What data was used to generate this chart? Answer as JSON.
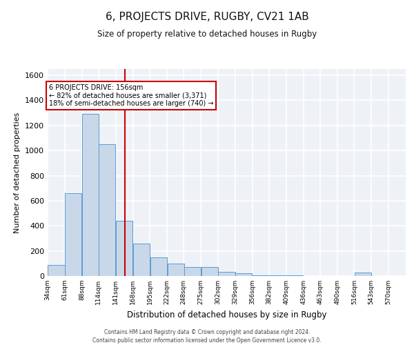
{
  "title": "6, PROJECTS DRIVE, RUGBY, CV21 1AB",
  "subtitle": "Size of property relative to detached houses in Rugby",
  "xlabel": "Distribution of detached houses by size in Rugby",
  "ylabel": "Number of detached properties",
  "annotation_line1": "6 PROJECTS DRIVE: 156sqm",
  "annotation_line2": "← 82% of detached houses are smaller (3,371)",
  "annotation_line3": "18% of semi-detached houses are larger (740) →",
  "property_size": 156,
  "bar_color": "#c8d8e8",
  "bar_edge_color": "#5b9bd5",
  "vline_color": "#cc0000",
  "background_color": "#ffffff",
  "plot_bg_color": "#eef2f7",
  "grid_color": "#ffffff",
  "footer_line1": "Contains HM Land Registry data © Crown copyright and database right 2024.",
  "footer_line2": "Contains public sector information licensed under the Open Government Licence v3.0.",
  "bin_labels": [
    "34sqm",
    "61sqm",
    "88sqm",
    "114sqm",
    "141sqm",
    "168sqm",
    "195sqm",
    "222sqm",
    "248sqm",
    "275sqm",
    "302sqm",
    "329sqm",
    "356sqm",
    "382sqm",
    "409sqm",
    "436sqm",
    "463sqm",
    "490sqm",
    "516sqm",
    "543sqm",
    "570sqm"
  ],
  "bin_edges": [
    34,
    61,
    88,
    114,
    141,
    168,
    195,
    222,
    248,
    275,
    302,
    329,
    356,
    382,
    409,
    436,
    463,
    490,
    516,
    543,
    570
  ],
  "bar_heights": [
    90,
    660,
    1290,
    1050,
    440,
    260,
    150,
    100,
    70,
    70,
    35,
    20,
    5,
    5,
    5,
    0,
    0,
    0,
    30,
    0,
    0
  ],
  "ylim": [
    0,
    1650
  ],
  "yticks": [
    0,
    200,
    400,
    600,
    800,
    1000,
    1200,
    1400,
    1600
  ]
}
